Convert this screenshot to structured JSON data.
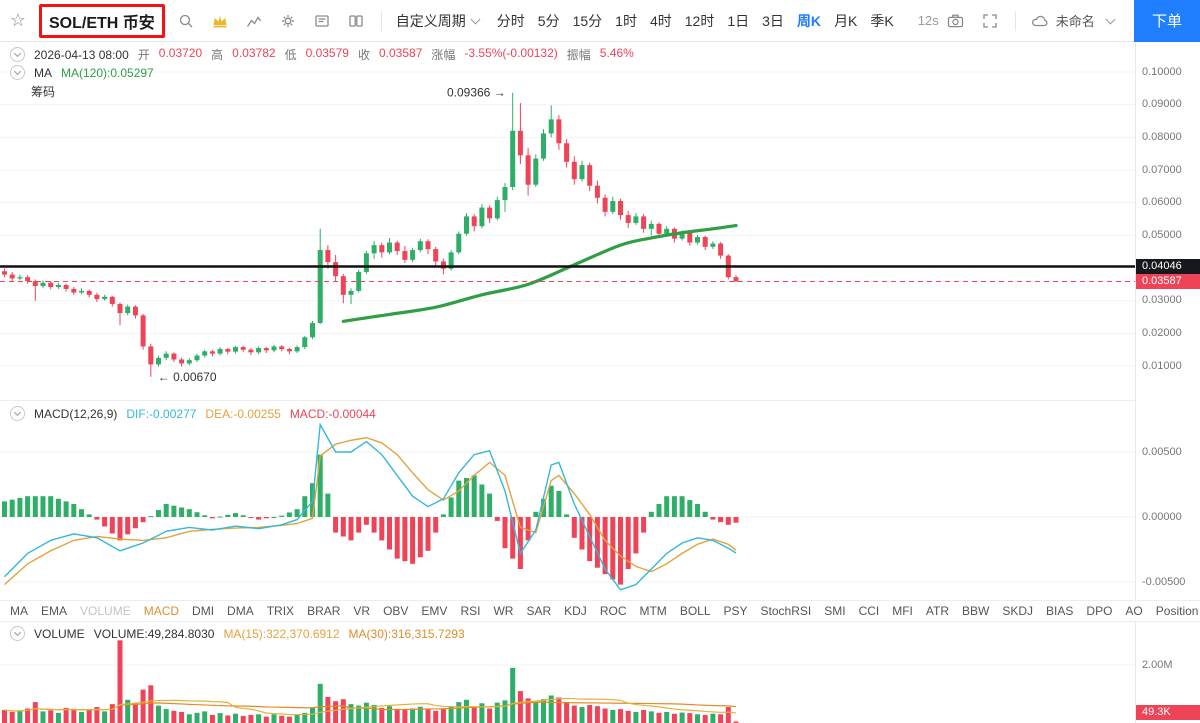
{
  "colors": {
    "up": "#2eae67",
    "down": "#ef4358",
    "ma_line": "#2f9e44",
    "dif_line": "#35b8d8",
    "dea_line": "#e2a33c",
    "vol_ma15": "#e3b23c",
    "vol_ma30": "#e08c28",
    "accent_blue": "#1f7fff",
    "annotation_red": "#f41212",
    "crown_gold": "#f0b429"
  },
  "toolbar": {
    "symbol": "SOL/ETH 币安",
    "custom_period_label": "自定义周期",
    "intervals": [
      {
        "label": "分时",
        "active": false
      },
      {
        "label": "5分",
        "active": false
      },
      {
        "label": "15分",
        "active": false
      },
      {
        "label": "1时",
        "active": false
      },
      {
        "label": "4时",
        "active": false
      },
      {
        "label": "12时",
        "active": false
      },
      {
        "label": "1日",
        "active": false
      },
      {
        "label": "3日",
        "active": false
      },
      {
        "label": "周K",
        "active": true
      },
      {
        "label": "月K",
        "active": false
      },
      {
        "label": "季K",
        "active": false
      }
    ],
    "countdown": "12s",
    "cloud_label": "未命名",
    "order_button": "下单"
  },
  "ohlc_bar": {
    "datetime": "2026-04-13 08:00",
    "fields": [
      {
        "label": "开",
        "value": "0.03720"
      },
      {
        "label": "高",
        "value": "0.03782"
      },
      {
        "label": "低",
        "value": "0.03579"
      },
      {
        "label": "收",
        "value": "0.03587"
      },
      {
        "label": "涨幅",
        "value": "-3.55%(-0.00132)"
      },
      {
        "label": "振幅",
        "value": "5.46%"
      }
    ]
  },
  "ma_bar": {
    "title": "MA",
    "value": "MA(120):0.05297"
  },
  "chips_label": "筹码",
  "macd_bar": {
    "title": "MACD(12,26,9)",
    "dif": "DIF:-0.00277",
    "dea": "DEA:-0.00255",
    "macd": "MACD:-0.00044"
  },
  "indicator_tabs": {
    "items": [
      "MA",
      "EMA",
      "VOLUME",
      "MACD",
      "DMI",
      "DMA",
      "TRIX",
      "BRAR",
      "VR",
      "OBV",
      "EMV",
      "RSI",
      "WR",
      "SAR",
      "KDJ",
      "ROC",
      "MTM",
      "BOLL",
      "PSY",
      "StochRSI",
      "SMI",
      "CCI",
      "MFI",
      "ATR",
      "BBW",
      "SKDJ",
      "BIAS",
      "DPO",
      "AO",
      "Position"
    ],
    "muted": [
      "VOLUME"
    ],
    "active": [
      "MACD"
    ]
  },
  "volume_bar": {
    "title": "VOLUME",
    "volume": "VOLUME:49,284.8030",
    "ma15": "MA(15):322,370.6912",
    "ma30": "MA(30):316,315.7293"
  },
  "axis": {
    "main_ticks": [
      "0.10000",
      "0.09000",
      "0.08000",
      "0.07000",
      "0.06000",
      "0.05000",
      "0.03000",
      "0.02000",
      "0.01000"
    ],
    "line_badge": "0.04046",
    "price_badge": "0.03587",
    "macd_ticks": [
      "0.00500",
      "0.00000",
      "-0.00500"
    ],
    "volume_tick": "2.00M",
    "volume_badge": "49.3K"
  },
  "chart_data": {
    "type": "candlestick",
    "symbol": "SOL/ETH",
    "exchange": "币安",
    "interval": "周K",
    "ohlc_last": {
      "open": 0.0372,
      "high": 0.03782,
      "low": 0.03579,
      "close": 0.03587,
      "change_pct": -3.55,
      "change": -0.00132,
      "amplitude_pct": 5.46
    },
    "y_axis_ticks": [
      0.1,
      0.09,
      0.08,
      0.07,
      0.06,
      0.05,
      0.03,
      0.02,
      0.01
    ],
    "horizontal_line": 0.04046,
    "last_price": 0.03587,
    "high_marker": {
      "index": 66,
      "price": 0.09366,
      "label": "0.09366 →"
    },
    "low_marker": {
      "index": 19,
      "price": 0.0067,
      "label": "← 0.00670"
    },
    "ma120": {
      "period": 120,
      "last": 0.05297,
      "points": [
        [
          44,
          0.0237
        ],
        [
          50,
          0.0258
        ],
        [
          56,
          0.028
        ],
        [
          62,
          0.0318
        ],
        [
          68,
          0.035
        ],
        [
          74,
          0.041
        ],
        [
          80,
          0.047
        ],
        [
          84,
          0.0492
        ],
        [
          88,
          0.0508
        ],
        [
          92,
          0.052
        ],
        [
          95,
          0.053
        ]
      ]
    },
    "candles": [
      [
        0.039,
        0.0398,
        0.0372,
        0.038
      ],
      [
        0.038,
        0.0388,
        0.036,
        0.0368
      ],
      [
        0.0368,
        0.038,
        0.0362,
        0.0372
      ],
      [
        0.0372,
        0.0378,
        0.0352,
        0.036
      ],
      [
        0.036,
        0.0365,
        0.03,
        0.0345
      ],
      [
        0.0345,
        0.0362,
        0.0338,
        0.0355
      ],
      [
        0.0355,
        0.036,
        0.0335,
        0.0342
      ],
      [
        0.0342,
        0.0355,
        0.0336,
        0.0348
      ],
      [
        0.0348,
        0.0352,
        0.0328,
        0.0336
      ],
      [
        0.0336,
        0.0342,
        0.0318,
        0.0325
      ],
      [
        0.0325,
        0.0338,
        0.032,
        0.033
      ],
      [
        0.033,
        0.0334,
        0.031,
        0.0318
      ],
      [
        0.0318,
        0.0324,
        0.0296,
        0.0305
      ],
      [
        0.0305,
        0.0318,
        0.03,
        0.0312
      ],
      [
        0.0312,
        0.0315,
        0.0282,
        0.029
      ],
      [
        0.029,
        0.0295,
        0.0225,
        0.0262
      ],
      [
        0.0262,
        0.0288,
        0.0255,
        0.0282
      ],
      [
        0.0282,
        0.0286,
        0.0245,
        0.0255
      ],
      [
        0.0255,
        0.026,
        0.015,
        0.016
      ],
      [
        0.016,
        0.0168,
        0.0067,
        0.0105
      ],
      [
        0.0105,
        0.0132,
        0.0098,
        0.0125
      ],
      [
        0.0125,
        0.0145,
        0.0118,
        0.0138
      ],
      [
        0.0138,
        0.0142,
        0.0112,
        0.012
      ],
      [
        0.012,
        0.0126,
        0.0098,
        0.0108
      ],
      [
        0.0108,
        0.0124,
        0.0102,
        0.0118
      ],
      [
        0.0118,
        0.0138,
        0.0112,
        0.0132
      ],
      [
        0.0132,
        0.015,
        0.0126,
        0.0145
      ],
      [
        0.0145,
        0.015,
        0.013,
        0.0138
      ],
      [
        0.0138,
        0.0158,
        0.0132,
        0.0152
      ],
      [
        0.0152,
        0.0156,
        0.0136,
        0.0144
      ],
      [
        0.0144,
        0.0162,
        0.0138,
        0.0158
      ],
      [
        0.0158,
        0.0162,
        0.0142,
        0.015
      ],
      [
        0.015,
        0.0155,
        0.0134,
        0.0142
      ],
      [
        0.0142,
        0.016,
        0.0136,
        0.0155
      ],
      [
        0.0155,
        0.0158,
        0.014,
        0.0148
      ],
      [
        0.0148,
        0.0165,
        0.0142,
        0.016
      ],
      [
        0.016,
        0.0164,
        0.0145,
        0.0152
      ],
      [
        0.0152,
        0.0156,
        0.0136,
        0.0145
      ],
      [
        0.0145,
        0.0163,
        0.014,
        0.0158
      ],
      [
        0.0158,
        0.0192,
        0.0152,
        0.0188
      ],
      [
        0.0188,
        0.0238,
        0.0182,
        0.0232
      ],
      [
        0.0232,
        0.052,
        0.0228,
        0.0455
      ],
      [
        0.0455,
        0.047,
        0.0398,
        0.0418
      ],
      [
        0.0418,
        0.044,
        0.036,
        0.0375
      ],
      [
        0.0375,
        0.0382,
        0.0292,
        0.0318
      ],
      [
        0.0318,
        0.0338,
        0.029,
        0.033
      ],
      [
        0.033,
        0.0395,
        0.0325,
        0.0388
      ],
      [
        0.0388,
        0.0452,
        0.0382,
        0.0445
      ],
      [
        0.0445,
        0.0482,
        0.0428,
        0.047
      ],
      [
        0.047,
        0.0478,
        0.0432,
        0.0448
      ],
      [
        0.0448,
        0.0492,
        0.0442,
        0.0478
      ],
      [
        0.0478,
        0.0484,
        0.044,
        0.0452
      ],
      [
        0.0452,
        0.0468,
        0.0415,
        0.0425
      ],
      [
        0.0425,
        0.0462,
        0.0418,
        0.0455
      ],
      [
        0.0455,
        0.049,
        0.0448,
        0.0482
      ],
      [
        0.0482,
        0.0488,
        0.0442,
        0.0458
      ],
      [
        0.0458,
        0.0465,
        0.0408,
        0.042
      ],
      [
        0.042,
        0.0428,
        0.038,
        0.0398
      ],
      [
        0.0398,
        0.0455,
        0.0392,
        0.0448
      ],
      [
        0.0448,
        0.0512,
        0.0442,
        0.0505
      ],
      [
        0.0505,
        0.0568,
        0.0498,
        0.0558
      ],
      [
        0.0558,
        0.0565,
        0.0512,
        0.0528
      ],
      [
        0.0528,
        0.0595,
        0.0522,
        0.0585
      ],
      [
        0.0585,
        0.0592,
        0.0538,
        0.0552
      ],
      [
        0.0552,
        0.0618,
        0.0546,
        0.0608
      ],
      [
        0.0608,
        0.066,
        0.0572,
        0.0648
      ],
      [
        0.0648,
        0.09366,
        0.0638,
        0.082
      ],
      [
        0.082,
        0.0905,
        0.0718,
        0.0745
      ],
      [
        0.0745,
        0.0768,
        0.0622,
        0.0655
      ],
      [
        0.0655,
        0.0748,
        0.0648,
        0.0735
      ],
      [
        0.0735,
        0.0825,
        0.0728,
        0.0812
      ],
      [
        0.0812,
        0.0898,
        0.08,
        0.0855
      ],
      [
        0.0855,
        0.0868,
        0.0762,
        0.0782
      ],
      [
        0.0782,
        0.0795,
        0.0708,
        0.0725
      ],
      [
        0.0725,
        0.0742,
        0.0655,
        0.0672
      ],
      [
        0.0672,
        0.0728,
        0.0665,
        0.0715
      ],
      [
        0.0715,
        0.0722,
        0.0635,
        0.0652
      ],
      [
        0.0652,
        0.0668,
        0.0598,
        0.0615
      ],
      [
        0.0615,
        0.0625,
        0.0558,
        0.0572
      ],
      [
        0.0572,
        0.0618,
        0.0565,
        0.0605
      ],
      [
        0.0605,
        0.0612,
        0.0548,
        0.0562
      ],
      [
        0.0562,
        0.0575,
        0.0522,
        0.0538
      ],
      [
        0.0538,
        0.0568,
        0.0532,
        0.0558
      ],
      [
        0.0558,
        0.0565,
        0.0508,
        0.052
      ],
      [
        0.052,
        0.0545,
        0.05,
        0.0535
      ],
      [
        0.0535,
        0.054,
        0.0492,
        0.0505
      ],
      [
        0.0505,
        0.0528,
        0.0498,
        0.052
      ],
      [
        0.052,
        0.0524,
        0.0478,
        0.049
      ],
      [
        0.049,
        0.0515,
        0.0484,
        0.0508
      ],
      [
        0.0508,
        0.0512,
        0.0468,
        0.0478
      ],
      [
        0.0478,
        0.0502,
        0.0472,
        0.0495
      ],
      [
        0.0495,
        0.0499,
        0.0455,
        0.0465
      ],
      [
        0.0465,
        0.0482,
        0.0458,
        0.0475
      ],
      [
        0.0475,
        0.0479,
        0.0428,
        0.0438
      ],
      [
        0.0438,
        0.0442,
        0.0365,
        0.0372
      ],
      [
        0.0372,
        0.03782,
        0.03579,
        0.03587
      ]
    ],
    "volumes": [
      450000,
      380000,
      420000,
      500000,
      720000,
      400000,
      440000,
      350000,
      520000,
      480000,
      380000,
      450000,
      550000,
      400000,
      650000,
      2850000,
      800000,
      700000,
      1150000,
      1300000,
      600000,
      480000,
      420000,
      380000,
      300000,
      350000,
      400000,
      280000,
      340000,
      260000,
      320000,
      240000,
      280000,
      300000,
      220000,
      300000,
      250000,
      220000,
      280000,
      350000,
      520000,
      1350000,
      900000,
      750000,
      820000,
      650000,
      600000,
      700000,
      620000,
      520000,
      580000,
      480000,
      450000,
      500000,
      560000,
      470000,
      420000,
      500000,
      580000,
      720000,
      800000,
      550000,
      680000,
      500000,
      700000,
      780000,
      1900000,
      1100000,
      850000,
      750000,
      820000,
      950000,
      880000,
      720000,
      600000,
      550000,
      620000,
      580000,
      500000,
      450000,
      480000,
      420000,
      380000,
      450000,
      400000,
      350000,
      380000,
      320000,
      360000,
      340000,
      300000,
      280000,
      320000,
      300000,
      550000,
      49284.803
    ],
    "macd": {
      "params": [
        12,
        26,
        9
      ],
      "dif_last": -0.00277,
      "dea_last": -0.00255,
      "hist_last": -0.00044,
      "axis_ticks": [
        0.005,
        0,
        -0.005
      ],
      "dif_keys": [
        [
          0,
          -0.0046
        ],
        [
          3,
          -0.0028
        ],
        [
          6,
          -0.0018
        ],
        [
          9,
          -0.0013
        ],
        [
          12,
          -0.0016
        ],
        [
          15,
          -0.0026
        ],
        [
          18,
          -0.002
        ],
        [
          21,
          -0.0011
        ],
        [
          24,
          -0.0008
        ],
        [
          27,
          -0.001
        ],
        [
          30,
          -0.0007
        ],
        [
          33,
          -0.0009
        ],
        [
          36,
          -0.0006
        ],
        [
          38,
          -0.0002
        ],
        [
          40,
          0.0012
        ],
        [
          41,
          0.0071
        ],
        [
          43,
          0.005
        ],
        [
          45,
          0.005
        ],
        [
          47,
          0.0058
        ],
        [
          49,
          0.0048
        ],
        [
          51,
          0.0032
        ],
        [
          53,
          0.0016
        ],
        [
          55,
          0.0008
        ],
        [
          57,
          0.0014
        ],
        [
          59,
          0.0034
        ],
        [
          61,
          0.0048
        ],
        [
          63,
          0.0051
        ],
        [
          65,
          0.002
        ],
        [
          67,
          -0.0028
        ],
        [
          69,
          -0.001
        ],
        [
          71,
          0.004
        ],
        [
          72,
          0.0042
        ],
        [
          74,
          0.001
        ],
        [
          76,
          -0.0015
        ],
        [
          78,
          -0.004
        ],
        [
          80,
          -0.0056
        ],
        [
          82,
          -0.0052
        ],
        [
          84,
          -0.004
        ],
        [
          86,
          -0.0028
        ],
        [
          88,
          -0.002
        ],
        [
          90,
          -0.0016
        ],
        [
          92,
          -0.0018
        ],
        [
          94,
          -0.0024
        ],
        [
          95,
          -0.00277
        ]
      ],
      "dea_keys": [
        [
          0,
          -0.0052
        ],
        [
          3,
          -0.0036
        ],
        [
          6,
          -0.0026
        ],
        [
          9,
          -0.0018
        ],
        [
          12,
          -0.0015
        ],
        [
          15,
          -0.0017
        ],
        [
          18,
          -0.0018
        ],
        [
          21,
          -0.0016
        ],
        [
          24,
          -0.0011
        ],
        [
          27,
          -0.00095
        ],
        [
          30,
          -0.00085
        ],
        [
          33,
          -0.0008
        ],
        [
          36,
          -0.00065
        ],
        [
          38,
          -0.0005
        ],
        [
          40,
          -0.0001
        ],
        [
          41,
          0.0047
        ],
        [
          43,
          0.0056
        ],
        [
          45,
          0.0059
        ],
        [
          47,
          0.0061
        ],
        [
          49,
          0.0057
        ],
        [
          51,
          0.0048
        ],
        [
          53,
          0.0034
        ],
        [
          55,
          0.0021
        ],
        [
          57,
          0.0013
        ],
        [
          59,
          0.002
        ],
        [
          61,
          0.0032
        ],
        [
          63,
          0.0042
        ],
        [
          65,
          0.0032
        ],
        [
          67,
          -0.0008
        ],
        [
          69,
          -0.0012
        ],
        [
          71,
          0.0028
        ],
        [
          72,
          0.0032
        ],
        [
          74,
          0.0018
        ],
        [
          76,
          0.0002
        ],
        [
          78,
          -0.0018
        ],
        [
          80,
          -0.003
        ],
        [
          82,
          -0.0038
        ],
        [
          84,
          -0.0042
        ],
        [
          86,
          -0.0036
        ],
        [
          88,
          -0.0028
        ],
        [
          90,
          -0.0021
        ],
        [
          92,
          -0.0017
        ],
        [
          94,
          -0.0021
        ],
        [
          95,
          -0.00255
        ]
      ]
    },
    "volume_indicator": {
      "last": 49284.803,
      "ma15_last": 322370.6912,
      "ma30_last": 316315.7293,
      "axis_tick": 2000000
    }
  }
}
